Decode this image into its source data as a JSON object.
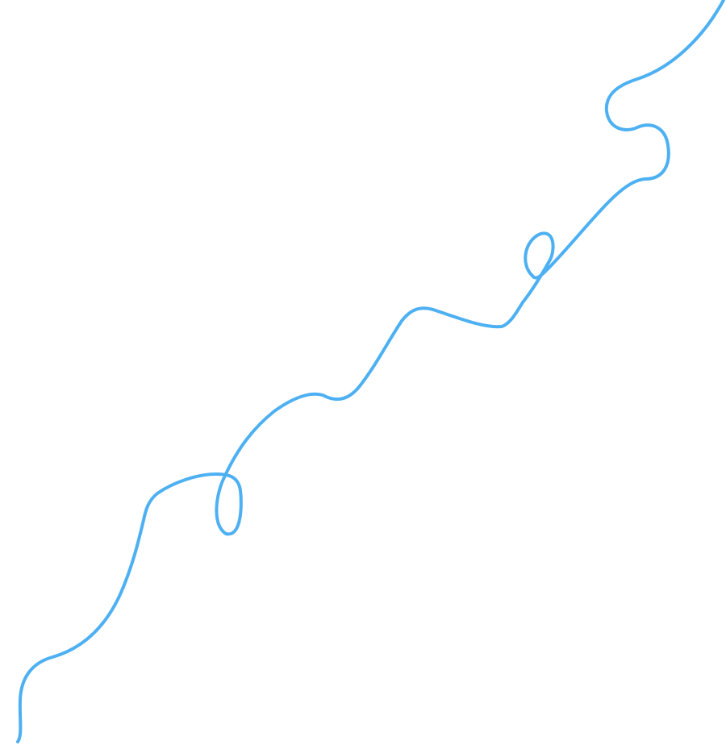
{
  "canvas": {
    "background_color": "#ffffff"
  },
  "line": {
    "stroke_color": "#4db0f2",
    "style": "freehand squiggle with two loops, running from bottom-left to top-right"
  }
}
